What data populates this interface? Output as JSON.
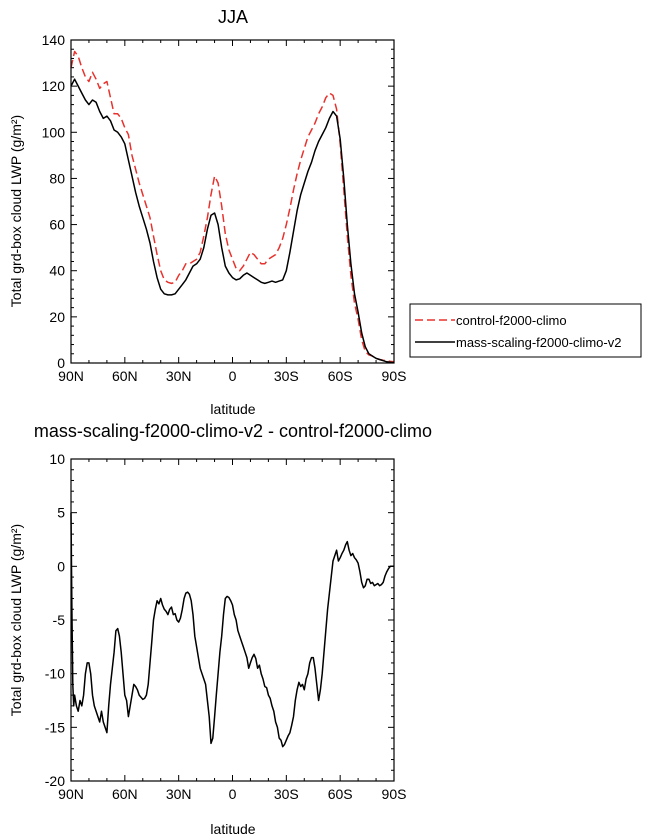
{
  "chart_data": [
    {
      "type": "line",
      "title": "JJA",
      "xlabel": "latitude",
      "ylabel": "Total grd-box cloud LWP",
      "ylabel_units": "(g/m²)",
      "xlim": [
        90,
        -90
      ],
      "ylim": [
        0,
        140
      ],
      "x_ticks": [
        90,
        60,
        30,
        0,
        -30,
        -60,
        -90
      ],
      "x_tick_labels": [
        "90N",
        "60N",
        "30N",
        "0",
        "30S",
        "60S",
        "90S"
      ],
      "y_ticks": [
        0,
        20,
        40,
        60,
        80,
        100,
        120,
        140
      ],
      "y_tick_labels": [
        "0",
        "20",
        "40",
        "60",
        "80",
        "100",
        "120",
        "140"
      ],
      "legend": "outside-right",
      "series": [
        {
          "name": "control-f2000-climo",
          "color": "#e8322d",
          "dash": "dashed",
          "x": [
            90,
            88,
            86,
            84,
            82,
            80,
            78,
            76,
            74,
            72,
            70,
            68,
            66,
            64,
            62,
            60,
            58,
            56,
            54,
            52,
            50,
            48,
            46,
            44,
            42,
            40,
            38,
            36,
            34,
            32,
            30,
            28,
            26,
            24,
            22,
            20,
            18,
            16,
            14,
            12,
            10,
            8,
            6,
            4,
            2,
            0,
            -2,
            -4,
            -6,
            -8,
            -10,
            -12,
            -14,
            -16,
            -18,
            -20,
            -22,
            -24,
            -26,
            -28,
            -30,
            -32,
            -34,
            -36,
            -38,
            -40,
            -42,
            -44,
            -46,
            -48,
            -50,
            -52,
            -54,
            -56,
            -58,
            -60,
            -62,
            -64,
            -66,
            -68,
            -70,
            -72,
            -74,
            -76,
            -78,
            -80,
            -82,
            -84,
            -86,
            -88,
            -90
          ],
          "y": [
            128,
            135,
            133,
            128,
            124,
            122,
            126,
            123,
            119,
            121,
            122,
            115,
            108,
            108,
            106,
            102,
            99,
            90,
            84,
            78,
            73,
            68,
            63,
            55,
            47,
            40,
            36,
            35,
            34.5,
            35,
            38,
            40,
            43,
            43,
            44,
            45,
            48,
            55,
            63,
            73,
            81,
            78,
            68,
            56,
            49,
            45,
            41,
            40,
            42,
            45,
            48,
            47,
            45,
            43,
            43,
            45,
            46,
            47,
            50,
            54,
            60,
            67,
            75,
            82,
            88,
            93,
            98,
            101,
            104,
            108,
            111,
            115,
            117,
            116,
            110,
            95,
            75,
            55,
            38,
            26,
            19,
            10,
            5,
            3.5,
            3,
            2,
            1.5,
            1.2,
            1,
            0.7,
            0.5
          ]
        },
        {
          "name": "mass-scaling-f2000-climo-v2",
          "color": "#000000",
          "dash": "solid",
          "x": [
            90,
            88,
            86,
            84,
            82,
            80,
            78,
            76,
            74,
            72,
            70,
            68,
            66,
            64,
            62,
            60,
            58,
            56,
            54,
            52,
            50,
            48,
            46,
            44,
            42,
            40,
            38,
            36,
            34,
            32,
            30,
            28,
            26,
            24,
            22,
            20,
            18,
            16,
            14,
            12,
            10,
            8,
            6,
            4,
            2,
            0,
            -2,
            -4,
            -6,
            -8,
            -10,
            -12,
            -14,
            -16,
            -18,
            -20,
            -22,
            -24,
            -26,
            -28,
            -30,
            -32,
            -34,
            -36,
            -38,
            -40,
            -42,
            -44,
            -46,
            -48,
            -50,
            -52,
            -54,
            -56,
            -58,
            -60,
            -62,
            -64,
            -66,
            -68,
            -70,
            -72,
            -74,
            -76,
            -78,
            -80,
            -82,
            -84,
            -86,
            -88,
            -90
          ],
          "y": [
            120,
            123,
            120,
            117,
            114,
            112,
            114,
            113,
            109,
            106,
            107,
            105,
            101,
            100,
            98,
            95,
            88,
            81,
            74,
            68,
            63,
            58,
            52,
            44,
            37,
            32,
            30,
            29.5,
            29.5,
            30,
            32,
            34,
            36,
            39,
            42,
            43,
            45,
            50,
            58,
            64,
            65,
            60,
            50,
            42,
            39,
            37,
            36,
            36.5,
            38,
            39,
            38,
            37,
            36,
            35,
            34.5,
            35,
            35.5,
            35,
            35.5,
            36,
            40,
            48,
            57,
            66,
            73,
            78,
            83,
            87,
            92,
            96,
            99,
            102,
            106,
            109,
            107,
            97,
            80,
            60,
            43,
            30,
            22,
            13,
            7,
            4,
            3,
            2,
            1.5,
            1,
            0.5,
            0.3,
            0.1
          ]
        }
      ]
    },
    {
      "type": "line",
      "title": "mass-scaling-f2000-climo-v2 - control-f2000-climo",
      "xlabel": "latitude",
      "ylabel": "Total grd-box cloud LWP",
      "ylabel_units": "(g/m²)",
      "xlim": [
        90,
        -90
      ],
      "ylim": [
        -20,
        10
      ],
      "x_ticks": [
        90,
        60,
        30,
        0,
        -30,
        -60,
        -90
      ],
      "x_tick_labels": [
        "90N",
        "60N",
        "30N",
        "0",
        "30S",
        "60S",
        "90S"
      ],
      "y_ticks": [
        -20,
        -15,
        -10,
        -5,
        0,
        5,
        10
      ],
      "y_tick_labels": [
        "-20",
        "-15",
        "-10",
        "-5",
        "0",
        "5",
        "10"
      ],
      "series": [
        {
          "name": "mass-scaling-f2000-climo-v2 - control-f2000-climo",
          "color": "#000000",
          "dash": "solid",
          "x": [
            90,
            89.5,
            89,
            88.5,
            88,
            87,
            86,
            85,
            84,
            83,
            82,
            81,
            80,
            79,
            78,
            77,
            76,
            75,
            74,
            73,
            72,
            71,
            70,
            69,
            68,
            67,
            66,
            65,
            64,
            63,
            62,
            61,
            60,
            59,
            58,
            57,
            56,
            55,
            54,
            53,
            52,
            51,
            50,
            49,
            48,
            47,
            46,
            45,
            44,
            43,
            42,
            41,
            40,
            39,
            38,
            37,
            36,
            35,
            34,
            33,
            32,
            31,
            30,
            29,
            28,
            27,
            26,
            25,
            24,
            23,
            22,
            21,
            20,
            19,
            18,
            17,
            16,
            15,
            14,
            13,
            12,
            11,
            10,
            9,
            8,
            7,
            6,
            5,
            4,
            3,
            2,
            1,
            0,
            -1,
            -2,
            -3,
            -4,
            -5,
            -6,
            -7,
            -8,
            -9,
            -10,
            -11,
            -12,
            -13,
            -14,
            -15,
            -16,
            -17,
            -18,
            -19,
            -20,
            -21,
            -22,
            -23,
            -24,
            -25,
            -26,
            -27,
            -28,
            -29,
            -30,
            -31,
            -32,
            -33,
            -34,
            -35,
            -36,
            -37,
            -38,
            -39,
            -40,
            -41,
            -42,
            -43,
            -44,
            -45,
            -46,
            -47,
            -48,
            -49,
            -50,
            -51,
            -52,
            -53,
            -54,
            -55,
            -56,
            -57,
            -58,
            -59,
            -60,
            -61,
            -62,
            -63,
            -64,
            -65,
            -66,
            -67,
            -68,
            -69,
            -70,
            -71,
            -72,
            -73,
            -74,
            -75,
            -76,
            -77,
            -78,
            -79,
            -80,
            -81,
            -82,
            -83,
            -84,
            -85,
            -86,
            -87,
            -88,
            -89,
            -90
          ],
          "y": [
            5,
            -4,
            -11,
            -13,
            -12,
            -13,
            -13.5,
            -12.5,
            -13,
            -12,
            -10,
            -9,
            -9,
            -10,
            -12,
            -13,
            -13.5,
            -14,
            -14.5,
            -13.5,
            -14.5,
            -15,
            -15.5,
            -13,
            -11,
            -9.5,
            -8,
            -6,
            -5.8,
            -6.5,
            -8,
            -10,
            -12,
            -12.5,
            -14,
            -13,
            -12,
            -11,
            -11.2,
            -11.5,
            -12,
            -12.2,
            -12.4,
            -12.3,
            -12,
            -11,
            -9,
            -7,
            -5,
            -4,
            -3.2,
            -3.5,
            -3,
            -3.6,
            -4,
            -4.2,
            -4.5,
            -4,
            -3.8,
            -4.5,
            -4.4,
            -5,
            -5.2,
            -4.8,
            -4,
            -3,
            -2.5,
            -2.4,
            -2.6,
            -3.2,
            -4.5,
            -6.5,
            -7.5,
            -8.5,
            -9.5,
            -10,
            -10.5,
            -11,
            -12.5,
            -14,
            -16.5,
            -16,
            -14,
            -12,
            -10,
            -8,
            -6.5,
            -4.5,
            -3,
            -2.8,
            -2.9,
            -3.2,
            -3.6,
            -4.5,
            -5,
            -6,
            -6.5,
            -7,
            -7.5,
            -8,
            -8.5,
            -9.5,
            -9,
            -8.5,
            -8.2,
            -8.6,
            -9.5,
            -9.2,
            -10,
            -10.5,
            -11.2,
            -11.3,
            -12,
            -12.3,
            -13,
            -13.5,
            -14.5,
            -15,
            -16,
            -16.2,
            -16.8,
            -16.6,
            -16.2,
            -15.8,
            -15.5,
            -14.8,
            -14,
            -12.5,
            -11.5,
            -10.8,
            -11.2,
            -11,
            -11.5,
            -10.5,
            -10,
            -9,
            -8.5,
            -8.5,
            -9.5,
            -11,
            -12.5,
            -11.5,
            -10,
            -8,
            -6,
            -4,
            -2.5,
            -1,
            0.5,
            1,
            1.5,
            0.5,
            0.8,
            1.2,
            1.5,
            2,
            2.3,
            1.5,
            1,
            1.2,
            0.8,
            0.6,
            0.3,
            -0.5,
            -1.5,
            -2,
            -1.8,
            -1.2,
            -1.2,
            -1.6,
            -1.5,
            -1.8,
            -1.7,
            -1.6,
            -1.8,
            -1.7,
            -1.5,
            -0.9,
            -0.5,
            -0.2,
            0,
            0,
            0
          ]
        }
      ]
    }
  ]
}
